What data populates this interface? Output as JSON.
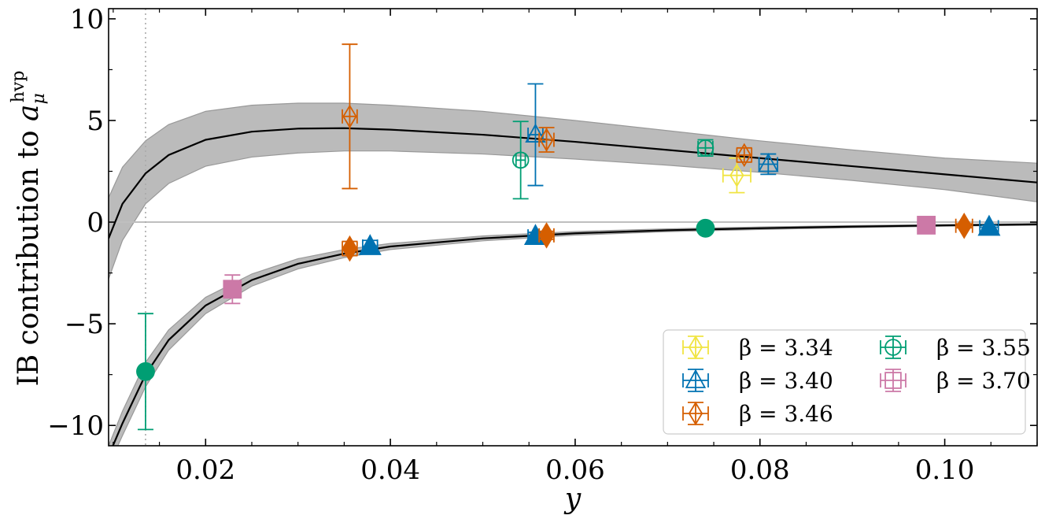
{
  "chart_data": {
    "type": "scatter",
    "title": "",
    "xlabel": "y",
    "ylabel": "IB contribution to a_μ^hvp",
    "ylabel_base": "IB contribution to ",
    "ylabel_symbol": "a",
    "ylabel_sub": "μ",
    "ylabel_sup": "hvp",
    "xlim": [
      0.0095,
      0.11
    ],
    "ylim": [
      -11,
      10.5
    ],
    "x_ticks": [
      0.02,
      0.04,
      0.06,
      0.08,
      0.1
    ],
    "x_tick_labels": [
      "0.02",
      "0.04",
      "0.06",
      "0.08",
      "0.10"
    ],
    "y_ticks": [
      -10,
      -5,
      0,
      5,
      10
    ],
    "y_tick_labels": [
      "−10",
      "−5",
      "0",
      "5",
      "10"
    ],
    "reference_lines": {
      "horizontal_y": 0,
      "vertical_x": 0.0135
    },
    "legend_position": "lower-right",
    "series": [
      {
        "name": "β = 3.34",
        "color": "#f0e442",
        "marker": "diamond",
        "open": [
          {
            "x": 0.0775,
            "y": 2.3,
            "yerr": 0.85,
            "xerr": 0.0015
          }
        ],
        "filled": []
      },
      {
        "name": "β = 3.40",
        "color": "#0072b2",
        "marker": "triangle",
        "open": [
          {
            "x": 0.0557,
            "y": 4.3,
            "yerr": 2.5,
            "xerr": 0.0008
          },
          {
            "x": 0.0809,
            "y": 2.85,
            "yerr": 0.5,
            "xerr": 0.001
          }
        ],
        "filled": [
          {
            "x": 0.0378,
            "y": -1.2,
            "yerr": 0.3,
            "xerr": 0.0008
          },
          {
            "x": 0.0557,
            "y": -0.7,
            "yerr": 0.2,
            "xerr": 0.0008
          },
          {
            "x": 0.1048,
            "y": -0.25,
            "yerr": 0.1,
            "xerr": 0.001
          }
        ]
      },
      {
        "name": "β = 3.46",
        "color": "#d55e00",
        "marker": "diamond",
        "open": [
          {
            "x": 0.0356,
            "y": 5.2,
            "yerr": 3.55,
            "xerr": 0.0008
          },
          {
            "x": 0.0569,
            "y": 4.05,
            "yerr": 0.6,
            "xerr": 0.0008
          },
          {
            "x": 0.0783,
            "y": 3.3,
            "yerr": 0.35,
            "xerr": 0.0008
          }
        ],
        "filled": [
          {
            "x": 0.0356,
            "y": -1.3,
            "yerr": 0.35,
            "xerr": 0.0008
          },
          {
            "x": 0.0569,
            "y": -0.65,
            "yerr": 0.2,
            "xerr": 0.0008
          },
          {
            "x": 0.1021,
            "y": -0.18,
            "yerr": 0.1,
            "xerr": 0.0009
          }
        ]
      },
      {
        "name": "β = 3.55",
        "color": "#009e73",
        "marker": "circle",
        "open": [
          {
            "x": 0.0541,
            "y": 3.05,
            "yerr": 1.9,
            "xerr": 0.0005
          },
          {
            "x": 0.0741,
            "y": 3.65,
            "yerr": 0.4,
            "xerr": 0.0008
          }
        ],
        "filled": [
          {
            "x": 0.0135,
            "y": -7.35,
            "yerr": 2.85,
            "xerr": 0.0004
          },
          {
            "x": 0.0741,
            "y": -0.3,
            "yerr": 0.1,
            "xerr": 0.0005
          }
        ]
      },
      {
        "name": "β = 3.70",
        "color": "#cc79a7",
        "marker": "square",
        "open": [],
        "filled": [
          {
            "x": 0.0229,
            "y": -3.3,
            "yerr": 0.7,
            "xerr": 0.0006
          },
          {
            "x": 0.098,
            "y": -0.15,
            "yerr": 0.1,
            "xerr": 0.0006
          }
        ]
      }
    ],
    "fit_curves": [
      {
        "name": "upper-fit",
        "points": [
          [
            0.0095,
            -0.8
          ],
          [
            0.011,
            0.9
          ],
          [
            0.0135,
            2.4
          ],
          [
            0.016,
            3.3
          ],
          [
            0.02,
            4.05
          ],
          [
            0.025,
            4.45
          ],
          [
            0.03,
            4.6
          ],
          [
            0.035,
            4.62
          ],
          [
            0.04,
            4.55
          ],
          [
            0.05,
            4.3
          ],
          [
            0.06,
            3.95
          ],
          [
            0.07,
            3.55
          ],
          [
            0.08,
            3.15
          ],
          [
            0.09,
            2.75
          ],
          [
            0.1,
            2.35
          ],
          [
            0.11,
            1.95
          ]
        ],
        "band_upper": [
          [
            0.0095,
            1.2
          ],
          [
            0.011,
            2.7
          ],
          [
            0.0135,
            4.0
          ],
          [
            0.016,
            4.8
          ],
          [
            0.02,
            5.45
          ],
          [
            0.025,
            5.75
          ],
          [
            0.03,
            5.85
          ],
          [
            0.035,
            5.85
          ],
          [
            0.04,
            5.75
          ],
          [
            0.05,
            5.45
          ],
          [
            0.06,
            5.0
          ],
          [
            0.07,
            4.5
          ],
          [
            0.08,
            4.0
          ],
          [
            0.09,
            3.55
          ],
          [
            0.1,
            3.15
          ],
          [
            0.11,
            2.9
          ]
        ],
        "band_lower": [
          [
            0.0095,
            -2.8
          ],
          [
            0.011,
            -0.9
          ],
          [
            0.0135,
            0.9
          ],
          [
            0.016,
            1.9
          ],
          [
            0.02,
            2.75
          ],
          [
            0.025,
            3.2
          ],
          [
            0.03,
            3.4
          ],
          [
            0.035,
            3.5
          ],
          [
            0.04,
            3.5
          ],
          [
            0.05,
            3.35
          ],
          [
            0.06,
            3.1
          ],
          [
            0.07,
            2.8
          ],
          [
            0.08,
            2.45
          ],
          [
            0.09,
            2.05
          ],
          [
            0.1,
            1.6
          ],
          [
            0.11,
            1.0
          ]
        ]
      },
      {
        "name": "lower-fit",
        "points": [
          [
            0.0095,
            -11.5
          ],
          [
            0.011,
            -9.9
          ],
          [
            0.0135,
            -7.5
          ],
          [
            0.016,
            -5.8
          ],
          [
            0.02,
            -4.1
          ],
          [
            0.025,
            -2.85
          ],
          [
            0.03,
            -2.05
          ],
          [
            0.035,
            -1.55
          ],
          [
            0.04,
            -1.2
          ],
          [
            0.05,
            -0.8
          ],
          [
            0.06,
            -0.55
          ],
          [
            0.07,
            -0.4
          ],
          [
            0.08,
            -0.3
          ],
          [
            0.09,
            -0.22
          ],
          [
            0.1,
            -0.16
          ],
          [
            0.11,
            -0.11
          ]
        ],
        "band_upper": [
          [
            0.0095,
            -11.0
          ],
          [
            0.011,
            -9.3
          ],
          [
            0.0135,
            -6.9
          ],
          [
            0.016,
            -5.3
          ],
          [
            0.02,
            -3.7
          ],
          [
            0.025,
            -2.55
          ],
          [
            0.03,
            -1.8
          ],
          [
            0.035,
            -1.35
          ],
          [
            0.04,
            -1.05
          ],
          [
            0.05,
            -0.68
          ],
          [
            0.06,
            -0.46
          ],
          [
            0.07,
            -0.33
          ],
          [
            0.08,
            -0.24
          ],
          [
            0.09,
            -0.17
          ],
          [
            0.1,
            -0.12
          ],
          [
            0.11,
            -0.07
          ]
        ],
        "band_lower": [
          [
            0.0095,
            -12.0
          ],
          [
            0.011,
            -10.5
          ],
          [
            0.0135,
            -8.1
          ],
          [
            0.016,
            -6.3
          ],
          [
            0.02,
            -4.5
          ],
          [
            0.025,
            -3.15
          ],
          [
            0.03,
            -2.3
          ],
          [
            0.035,
            -1.75
          ],
          [
            0.04,
            -1.35
          ],
          [
            0.05,
            -0.92
          ],
          [
            0.06,
            -0.64
          ],
          [
            0.07,
            -0.47
          ],
          [
            0.08,
            -0.36
          ],
          [
            0.09,
            -0.27
          ],
          [
            0.1,
            -0.2
          ],
          [
            0.11,
            -0.15
          ]
        ]
      }
    ]
  }
}
